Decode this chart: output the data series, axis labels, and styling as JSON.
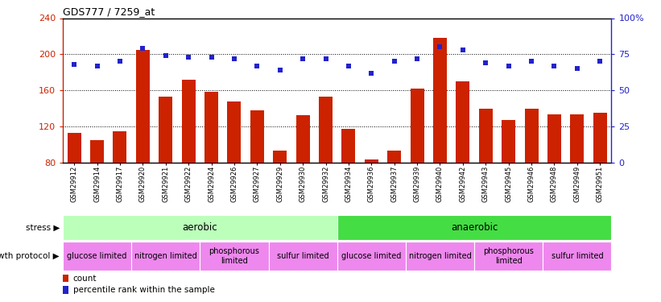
{
  "title": "GDS777 / 7259_at",
  "samples": [
    "GSM29912",
    "GSM29914",
    "GSM29917",
    "GSM29920",
    "GSM29921",
    "GSM29922",
    "GSM29924",
    "GSM29926",
    "GSM29927",
    "GSM29929",
    "GSM29930",
    "GSM29932",
    "GSM29934",
    "GSM29936",
    "GSM29937",
    "GSM29939",
    "GSM29940",
    "GSM29942",
    "GSM29943",
    "GSM29945",
    "GSM29946",
    "GSM29948",
    "GSM29949",
    "GSM29951"
  ],
  "counts": [
    113,
    105,
    115,
    205,
    153,
    172,
    158,
    148,
    138,
    93,
    132,
    153,
    117,
    83,
    93,
    162,
    218,
    170,
    140,
    127,
    140,
    133,
    133,
    135
  ],
  "percentile": [
    68,
    67,
    70,
    79,
    74,
    73,
    73,
    72,
    67,
    64,
    72,
    72,
    67,
    62,
    70,
    72,
    80,
    78,
    69,
    67,
    70,
    67,
    65,
    70
  ],
  "bar_color": "#cc2200",
  "dot_color": "#2222cc",
  "ymin": 80,
  "ymax": 240,
  "yticks": [
    80,
    120,
    160,
    200,
    240
  ],
  "y2min": 0,
  "y2max": 100,
  "y2ticks": [
    0,
    25,
    50,
    75,
    100
  ],
  "stress_aerobic_label": "aerobic",
  "stress_anaerobic_label": "anaerobic",
  "stress_aerobic_range": [
    0,
    11
  ],
  "stress_anaerobic_range": [
    12,
    23
  ],
  "stress_aerobic_color": "#bbffbb",
  "stress_anaerobic_color": "#44dd44",
  "growth_groups": [
    {
      "label": "glucose limited",
      "range": [
        0,
        2
      ],
      "color": "#ee88ee"
    },
    {
      "label": "nitrogen limited",
      "range": [
        3,
        5
      ],
      "color": "#ee88ee"
    },
    {
      "label": "phosphorous\nlimited",
      "range": [
        6,
        8
      ],
      "color": "#ee88ee"
    },
    {
      "label": "sulfur limited",
      "range": [
        9,
        11
      ],
      "color": "#ee88ee"
    },
    {
      "label": "glucose limited",
      "range": [
        12,
        14
      ],
      "color": "#ee88ee"
    },
    {
      "label": "nitrogen limited",
      "range": [
        15,
        17
      ],
      "color": "#ee88ee"
    },
    {
      "label": "phosphorous\nlimited",
      "range": [
        18,
        20
      ],
      "color": "#ee88ee"
    },
    {
      "label": "sulfur limited",
      "range": [
        21,
        23
      ],
      "color": "#ee88ee"
    }
  ],
  "legend_count_label": "count",
  "legend_percentile_label": "percentile rank within the sample",
  "stress_label": "stress",
  "growth_label": "growth protocol"
}
